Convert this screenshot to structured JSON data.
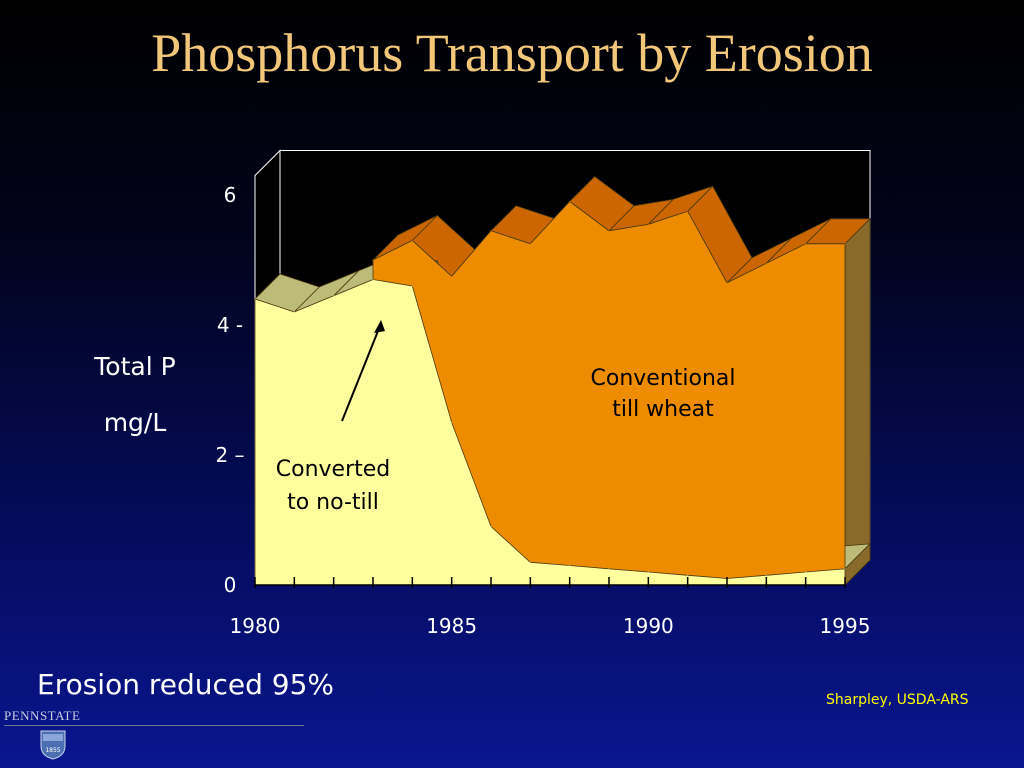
{
  "slide": {
    "title": "Phosphorus Transport by Erosion",
    "ylabel_line1": "Total P",
    "ylabel_line2": "mg/L",
    "caption": "Erosion reduced 95%",
    "source": "Sharpley, USDA-ARS",
    "logo_text": "PENNSTATE",
    "logo_year": "1855"
  },
  "chart_data": {
    "type": "area",
    "layered": true,
    "three_d": true,
    "x": [
      1980,
      1981,
      1982,
      1983,
      1984,
      1985,
      1986,
      1987,
      1988,
      1989,
      1990,
      1991,
      1992,
      1993,
      1994,
      1995
    ],
    "xticks": [
      {
        "value": 1980,
        "label": "1980"
      },
      {
        "value": 1985,
        "label": "1985"
      },
      {
        "value": 1990,
        "label": "1990"
      },
      {
        "value": 1995,
        "label": "1995"
      }
    ],
    "yticks": [
      {
        "value": 0,
        "label": "0"
      },
      {
        "value": 2,
        "label": "2 –"
      },
      {
        "value": 4,
        "label": "4 -"
      },
      {
        "value": 6,
        "label": "6"
      }
    ],
    "ylim": [
      0,
      6
    ],
    "series": [
      {
        "key": "conventional",
        "values": [
          null,
          null,
          null,
          5.0,
          5.3,
          4.75,
          5.45,
          5.25,
          5.9,
          5.45,
          5.55,
          5.75,
          4.65,
          4.95,
          5.25,
          5.25
        ],
        "color": "#ee8c00",
        "edge_color": "#cc6600"
      },
      {
        "key": "no_till",
        "values": [
          4.4,
          4.2,
          4.45,
          4.7,
          4.6,
          2.5,
          0.9,
          0.35,
          0.3,
          0.25,
          0.2,
          0.15,
          0.1,
          0.15,
          0.2,
          0.25
        ],
        "color": "#ffff9e",
        "edge_color": "#bdbb78"
      }
    ],
    "annotations": [
      {
        "key": "conventional_label",
        "lines": [
          "Conventional",
          "till wheat"
        ]
      },
      {
        "key": "no_till_label",
        "lines": [
          "Converted",
          "to no-till"
        ]
      }
    ]
  }
}
